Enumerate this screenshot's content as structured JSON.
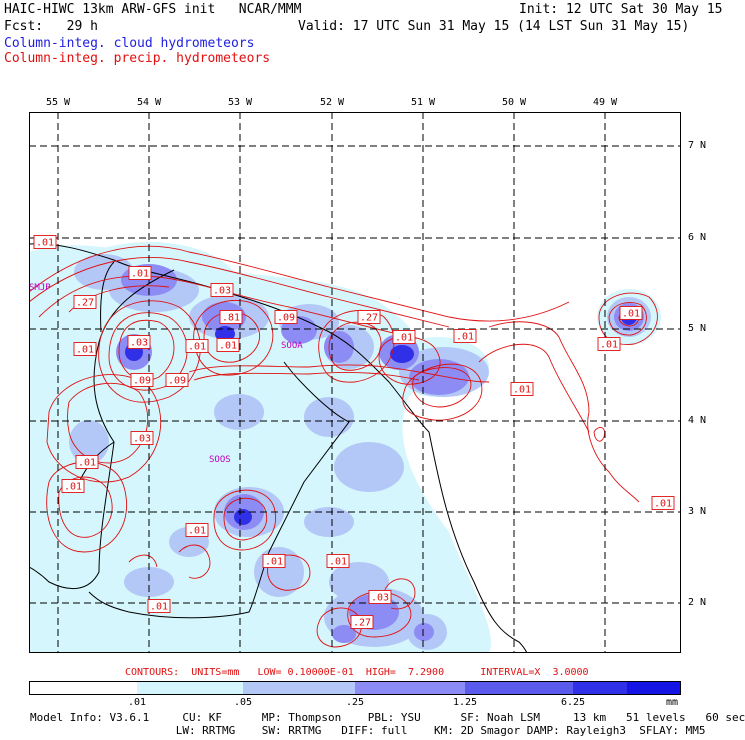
{
  "header": {
    "line1_left": "HAIC-HIWC 13km ARW-GFS init   NCAR/MMM",
    "line1_right": "Init: 12 UTC Sat 30 May 15",
    "line2_left": "Fcst:   29 h",
    "line2_right": "Valid: 17 UTC Sun 31 May 15 (14 LST Sun 31 May 15)",
    "legend_cloud": "Column-integ. cloud hydrometeors",
    "legend_precip": "Column-integ. precip. hydrometeors"
  },
  "map": {
    "lon_labels": [
      "55 W",
      "54 W",
      "53 W",
      "52 W",
      "51 W",
      "50 W",
      "49 W"
    ],
    "lat_labels": [
      "7 N",
      "6 N",
      "5 N",
      "4 N",
      "3 N",
      "2 N"
    ],
    "stations": [
      "SMJP",
      "SOOA",
      "SOOS"
    ],
    "contour_labels": [
      ".01",
      ".27",
      ".01",
      ".09",
      ".09",
      ".03",
      ".01",
      ".01",
      ".01",
      ".81",
      ".09",
      ".27",
      ".01",
      ".01",
      ".01",
      ".03",
      ".01",
      ".01",
      ".01",
      ".01",
      ".01",
      ".01",
      ".01",
      ".03",
      ".27",
      ".03",
      ".01",
      ".01"
    ]
  },
  "contour_info": "CONTOURS:  UNITS=mm   LOW= 0.10000E-01  HIGH=  7.2900      INTERVAL=X  3.0000",
  "colorbar": {
    "ticks": [
      ".01",
      ".05",
      ".25",
      "1.25",
      "6.25"
    ],
    "units": "mm",
    "colors": [
      "#ffffff",
      "#d4f6fc",
      "#b4c8f8",
      "#8c8cf4",
      "#5a5aec",
      "#3030e8",
      "#1414e4"
    ]
  },
  "model_info": {
    "line1": "Model Info: V3.6.1     CU: KF      MP: Thompson    PBL: YSU      SF: Noah LSM     13 km   51 levels   60 sec",
    "line2": "                      LW: RRTMG    SW: RRTMG   DIFF: full    KM: 2D Smagor DAMP: Rayleigh3  SFLAY: MM5"
  }
}
